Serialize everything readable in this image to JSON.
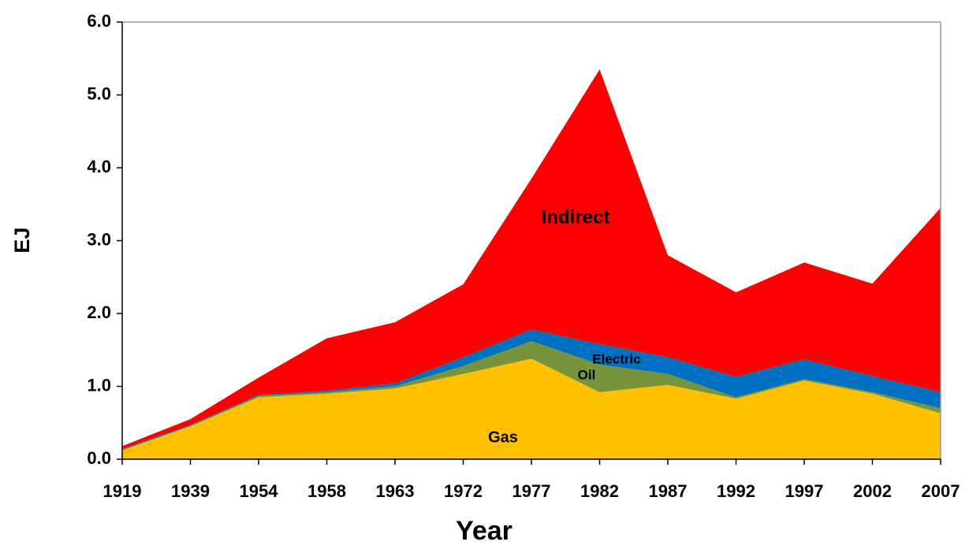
{
  "chart_data": {
    "type": "stacked_area",
    "xlabel": "Year",
    "ylabel": "EJ",
    "categories": [
      "1919",
      "1939",
      "1954",
      "1958",
      "1963",
      "1972",
      "1977",
      "1982",
      "1987",
      "1992",
      "1997",
      "2002",
      "2007"
    ],
    "series": [
      {
        "name": "Gas",
        "color": "#ffc000",
        "values": [
          0.12,
          0.45,
          0.85,
          0.9,
          0.97,
          1.17,
          1.38,
          0.92,
          1.02,
          0.83,
          1.08,
          0.9,
          0.63
        ]
      },
      {
        "name": "Oil",
        "color": "#77933c",
        "values": [
          0.01,
          0.01,
          0.02,
          0.02,
          0.03,
          0.11,
          0.24,
          0.38,
          0.15,
          0.02,
          0.02,
          0.02,
          0.07
        ]
      },
      {
        "name": "Electric",
        "color": "#0070c0",
        "values": [
          0.01,
          0.01,
          0.01,
          0.02,
          0.04,
          0.12,
          0.16,
          0.28,
          0.23,
          0.28,
          0.27,
          0.22,
          0.22
        ]
      },
      {
        "name": "Indirect",
        "color": "#ff0000",
        "values": [
          0.04,
          0.08,
          0.24,
          0.72,
          0.84,
          1.0,
          2.07,
          3.77,
          1.4,
          1.16,
          1.33,
          1.27,
          2.53
        ]
      }
    ],
    "ylim": [
      0,
      6
    ],
    "yticks": [
      {
        "value": 0,
        "label": "0.0"
      },
      {
        "value": 1,
        "label": "1.0"
      },
      {
        "value": 2,
        "label": "2.0"
      },
      {
        "value": 3,
        "label": "3.0"
      },
      {
        "value": 4,
        "label": "4.0"
      },
      {
        "value": 5,
        "label": "5.0"
      },
      {
        "value": 6,
        "label": "6.0"
      }
    ]
  }
}
